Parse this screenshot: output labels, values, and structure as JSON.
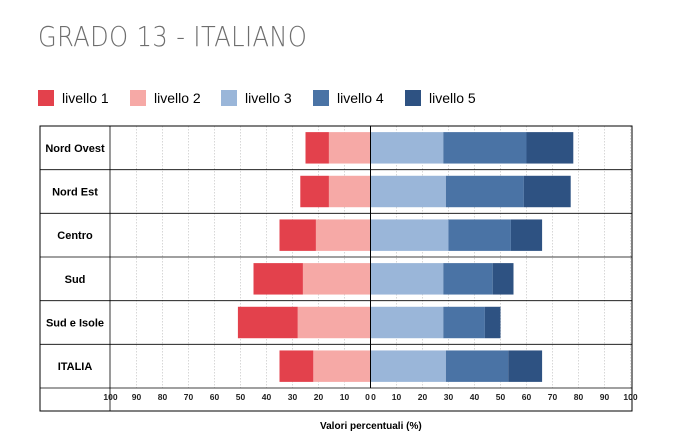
{
  "title": "GRADO 13 - ITALIANO",
  "chart_data": {
    "type": "bar",
    "orientation": "horizontal-diverging",
    "categories": [
      "Nord Ovest",
      "Nord Est",
      "Centro",
      "Sud",
      "Sud e Isole",
      "ITALIA"
    ],
    "series": [
      {
        "name": "livello 1",
        "side": "negative",
        "color": "#e3414c",
        "values": [
          9,
          11,
          14,
          19,
          23,
          13
        ]
      },
      {
        "name": "livello 2",
        "side": "negative",
        "color": "#f6a9a6",
        "values": [
          16,
          16,
          21,
          26,
          28,
          22
        ]
      },
      {
        "name": "livello 3",
        "side": "positive",
        "color": "#9ab6d9",
        "values": [
          28,
          29,
          30,
          28,
          28,
          29
        ]
      },
      {
        "name": "livello 4",
        "side": "positive",
        "color": "#4a73a5",
        "values": [
          32,
          30,
          24,
          19,
          16,
          24
        ]
      },
      {
        "name": "livello 5",
        "side": "positive",
        "color": "#2e5282",
        "values": [
          18,
          18,
          12,
          8,
          6,
          13
        ]
      }
    ],
    "xlabel": "Valori percentuali (%)",
    "xlim": [
      -100,
      100
    ],
    "x_ticks": [
      "100",
      "90",
      "80",
      "70",
      "60",
      "50",
      "40",
      "30",
      "20",
      "10",
      "0",
      "0",
      "10",
      "20",
      "30",
      "40",
      "50",
      "60",
      "70",
      "80",
      "90",
      "100"
    ],
    "grid": true,
    "legend_position": "top"
  }
}
